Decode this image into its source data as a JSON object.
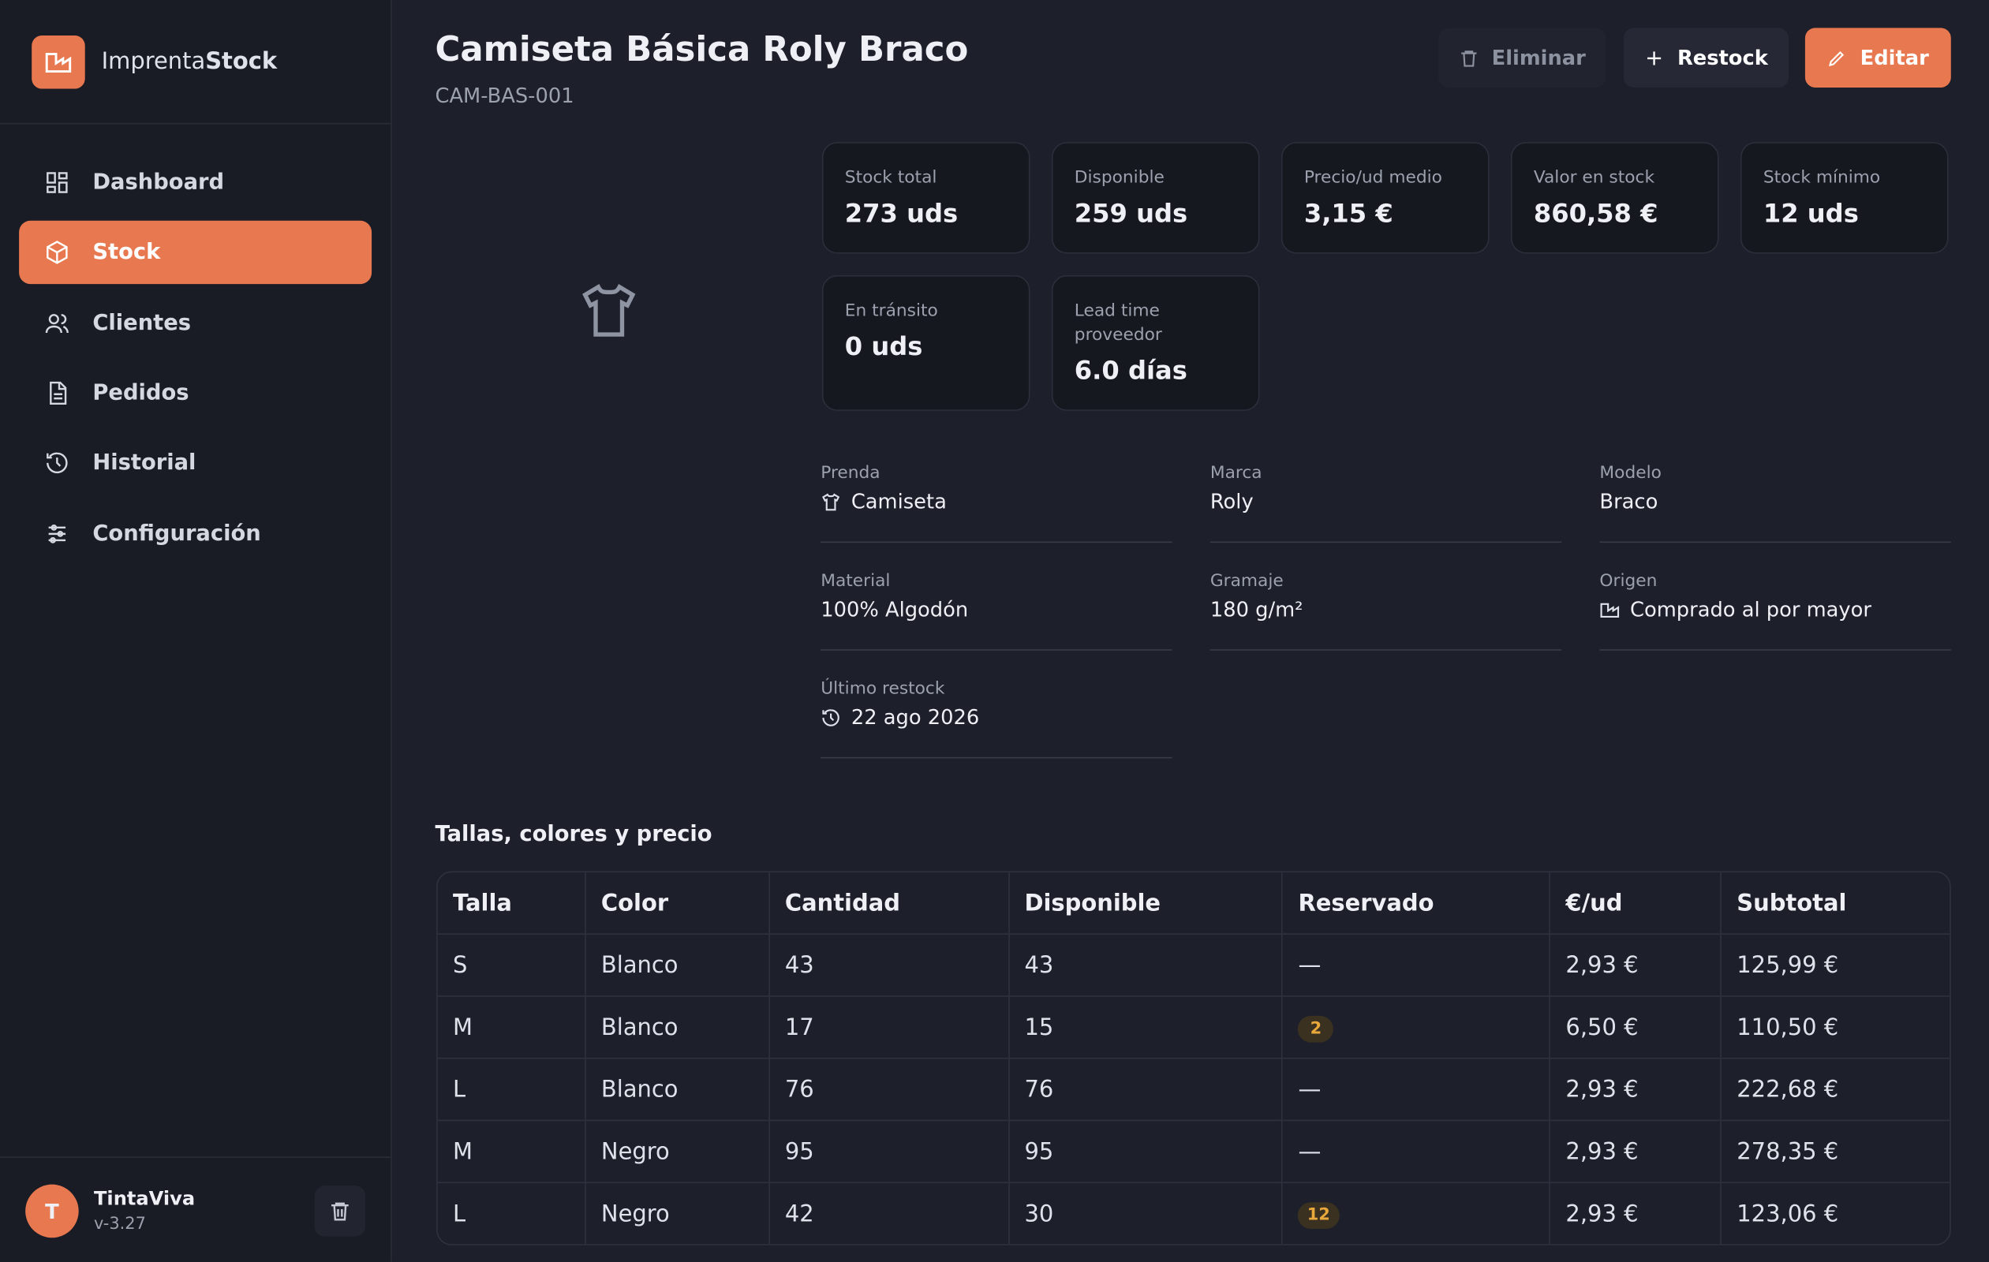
{
  "sidebar": {
    "brand": {
      "prefix": "Imprenta",
      "bold": "Stock"
    },
    "nav": [
      "Dashboard",
      "Stock",
      "Clientes",
      "Pedidos",
      "Historial",
      "Configuración"
    ],
    "user": {
      "initial": "T",
      "name": "TintaViva",
      "version": "v-3.27"
    }
  },
  "header": {
    "title": "Camiseta Básica Roly Braco",
    "sku": "CAM-BAS-001",
    "actions": [
      "Eliminar",
      "Restock",
      "Editar"
    ]
  },
  "stats": [
    {
      "label": "Stock total",
      "value": "273 uds"
    },
    {
      "label": "Disponible",
      "value": "259 uds"
    },
    {
      "label": "Precio/ud medio",
      "value": "3,15 €"
    },
    {
      "label": "Valor en stock",
      "value": "860,58 €"
    },
    {
      "label": "Stock mínimo",
      "value": "12 uds"
    },
    {
      "label": "En tránsito",
      "value": "0 uds"
    },
    {
      "label": "Lead time proveedor",
      "value": "6.0 días"
    }
  ],
  "details": [
    {
      "label": "Prenda",
      "value": "Camiseta"
    },
    {
      "label": "Marca",
      "value": "Roly"
    },
    {
      "label": "Modelo",
      "value": "Braco"
    },
    {
      "label": "Material",
      "value": "100% Algodón"
    },
    {
      "label": "Gramaje",
      "value": "180 g/m²"
    },
    {
      "label": "Origen",
      "value": "Comprado al por mayor"
    },
    {
      "label": "Último restock",
      "value": "22 ago 2026"
    }
  ],
  "table": {
    "title": "Tallas, colores y precio",
    "columns": [
      "Talla",
      "Color",
      "Cantidad",
      "Disponible",
      "Reservado",
      "€/ud",
      "Subtotal"
    ],
    "rows": [
      [
        "S",
        "Blanco",
        "43",
        "43",
        "—",
        "2,93 €",
        "125,99 €"
      ],
      [
        "M",
        "Blanco",
        "17",
        "15",
        "2",
        "6,50 €",
        "110,50 €"
      ],
      [
        "L",
        "Blanco",
        "76",
        "76",
        "—",
        "2,93 €",
        "222,68 €"
      ],
      [
        "M",
        "Negro",
        "95",
        "95",
        "—",
        "2,93 €",
        "278,35 €"
      ],
      [
        "L",
        "Negro",
        "42",
        "30",
        "12",
        "2,93 €",
        "123,06 €"
      ]
    ]
  }
}
